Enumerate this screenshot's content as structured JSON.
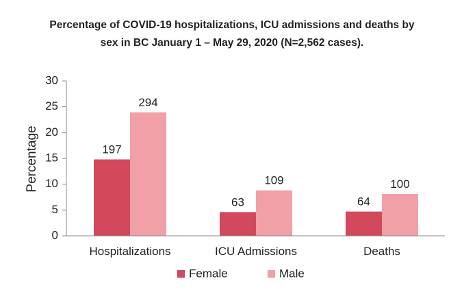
{
  "chart_data": {
    "type": "bar",
    "title_lines": [
      "Percentage of COVID-19 hospitalizations, ICU admissions and deaths by",
      "sex in BC January 1 – May 29, 2020 (N=2,562 cases)."
    ],
    "xlabel": "",
    "ylabel": "Percentage",
    "ylim": [
      0,
      30
    ],
    "yticks": [
      0,
      5,
      10,
      15,
      20,
      25,
      30
    ],
    "categories": [
      "Hospitalizations",
      "ICU Admissions",
      "Deaths"
    ],
    "series": [
      {
        "name": "Female",
        "color": "#d2495b",
        "values": [
          14.8,
          4.6,
          4.7
        ],
        "labels": [
          "197",
          "63",
          "64"
        ]
      },
      {
        "name": "Male",
        "color": "#f0a0a6",
        "values": [
          23.9,
          8.8,
          8.1
        ],
        "labels": [
          "294",
          "109",
          "100"
        ]
      }
    ],
    "legend_position": "bottom",
    "grid": false
  }
}
